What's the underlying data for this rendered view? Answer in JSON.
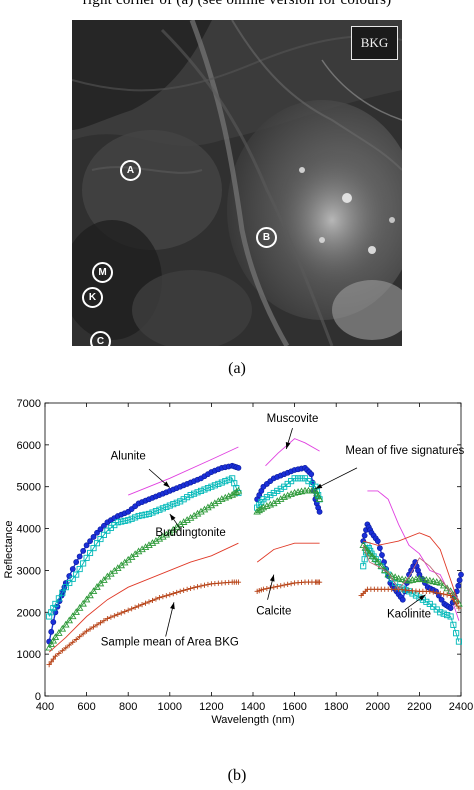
{
  "top_caption": "right corner of (a) (see online version for colours)",
  "image_panel": {
    "bkg_label": "BKG",
    "markers": [
      "A",
      "B",
      "M",
      "K",
      "C"
    ],
    "caption": "(a)"
  },
  "chart_caption": "(b)",
  "chart_data": {
    "type": "line",
    "title": "",
    "xlabel": "Wavelength (nm)",
    "ylabel": "Reflectance",
    "xlim": [
      400,
      2400
    ],
    "ylim": [
      0,
      7000
    ],
    "xticks": [
      400,
      600,
      800,
      1000,
      1200,
      1400,
      1600,
      1800,
      2000,
      2200,
      2400
    ],
    "yticks": [
      0,
      1000,
      2000,
      3000,
      4000,
      5000,
      6000,
      7000
    ],
    "grid": false,
    "series": [
      {
        "name": "Muscovite",
        "color": "#e040e0",
        "marker": "none",
        "segments": [
          [
            [
              800,
              4800
            ],
            [
              1000,
              5200
            ],
            [
              1200,
              5650
            ],
            [
              1330,
              5950
            ]
          ],
          [
            [
              1460,
              5500
            ],
            [
              1520,
              5800
            ],
            [
              1600,
              6150
            ],
            [
              1650,
              6050
            ],
            [
              1720,
              5850
            ]
          ],
          [
            [
              1950,
              4900
            ],
            [
              2000,
              4900
            ],
            [
              2050,
              4700
            ],
            [
              2100,
              4100
            ],
            [
              2150,
              3600
            ],
            [
              2200,
              3400
            ],
            [
              2250,
              3000
            ],
            [
              2300,
              2900
            ],
            [
              2350,
              2400
            ],
            [
              2390,
              1800
            ]
          ]
        ]
      },
      {
        "name": "Alunite",
        "color": "#1a2fd8",
        "marker": "circle",
        "segments": [
          [
            [
              420,
              1300
            ],
            [
              450,
              2000
            ],
            [
              480,
              2400
            ],
            [
              500,
              2700
            ],
            [
              550,
              3200
            ],
            [
              600,
              3600
            ],
            [
              650,
              3900
            ],
            [
              700,
              4150
            ],
            [
              750,
              4300
            ],
            [
              800,
              4400
            ],
            [
              850,
              4600
            ],
            [
              900,
              4700
            ],
            [
              950,
              4800
            ],
            [
              1000,
              4900
            ],
            [
              1050,
              5000
            ],
            [
              1100,
              5100
            ],
            [
              1150,
              5200
            ],
            [
              1200,
              5350
            ],
            [
              1250,
              5450
            ],
            [
              1300,
              5500
            ],
            [
              1330,
              5450
            ]
          ],
          [
            [
              1420,
              4700
            ],
            [
              1450,
              5000
            ],
            [
              1500,
              5200
            ],
            [
              1550,
              5300
            ],
            [
              1600,
              5400
            ],
            [
              1650,
              5450
            ],
            [
              1680,
              5300
            ],
            [
              1700,
              4700
            ],
            [
              1720,
              4400
            ]
          ],
          [
            [
              1930,
              3700
            ],
            [
              1950,
              4100
            ],
            [
              1970,
              3900
            ],
            [
              2000,
              3700
            ],
            [
              2030,
              3200
            ],
            [
              2060,
              2700
            ],
            [
              2090,
              2500
            ],
            [
              2120,
              2300
            ],
            [
              2150,
              2900
            ],
            [
              2180,
              3200
            ],
            [
              2200,
              2900
            ],
            [
              2240,
              2600
            ],
            [
              2280,
              2500
            ],
            [
              2320,
              2200
            ],
            [
              2350,
              2100
            ],
            [
              2380,
              2500
            ],
            [
              2400,
              2900
            ]
          ]
        ]
      },
      {
        "name": "Mean of five signatures",
        "color": "#00b8b8",
        "marker": "square",
        "segments": [
          [
            [
              420,
              1900
            ],
            [
              450,
              2200
            ],
            [
              500,
              2600
            ],
            [
              550,
              2900
            ],
            [
              600,
              3300
            ],
            [
              650,
              3650
            ],
            [
              700,
              3950
            ],
            [
              750,
              4150
            ],
            [
              800,
              4200
            ],
            [
              850,
              4300
            ],
            [
              900,
              4350
            ],
            [
              950,
              4450
            ],
            [
              1000,
              4550
            ],
            [
              1050,
              4650
            ],
            [
              1100,
              4800
            ],
            [
              1150,
              4900
            ],
            [
              1200,
              5000
            ],
            [
              1250,
              5100
            ],
            [
              1300,
              5200
            ],
            [
              1330,
              4850
            ]
          ],
          [
            [
              1420,
              4500
            ],
            [
              1450,
              4700
            ],
            [
              1500,
              4850
            ],
            [
              1550,
              5000
            ],
            [
              1600,
              5200
            ],
            [
              1650,
              5200
            ],
            [
              1700,
              5000
            ],
            [
              1720,
              4700
            ]
          ],
          [
            [
              1930,
              3100
            ],
            [
              1950,
              3600
            ],
            [
              1970,
              3400
            ],
            [
              2000,
              3200
            ],
            [
              2050,
              2900
            ],
            [
              2100,
              2600
            ],
            [
              2150,
              2500
            ],
            [
              2200,
              2350
            ],
            [
              2250,
              2200
            ],
            [
              2300,
              2000
            ],
            [
              2350,
              1900
            ],
            [
              2390,
              1300
            ]
          ]
        ]
      },
      {
        "name": "Buddingtonite",
        "color": "#2f9a3a",
        "marker": "triangle",
        "segments": [
          [
            [
              420,
              1150
            ],
            [
              450,
              1400
            ],
            [
              500,
              1700
            ],
            [
              550,
              2000
            ],
            [
              600,
              2300
            ],
            [
              650,
              2600
            ],
            [
              700,
              2850
            ],
            [
              750,
              3050
            ],
            [
              800,
              3250
            ],
            [
              850,
              3450
            ],
            [
              900,
              3600
            ],
            [
              950,
              3750
            ],
            [
              1000,
              3900
            ],
            [
              1050,
              4100
            ],
            [
              1100,
              4250
            ],
            [
              1150,
              4400
            ],
            [
              1200,
              4550
            ],
            [
              1250,
              4700
            ],
            [
              1300,
              4800
            ],
            [
              1330,
              4900
            ]
          ],
          [
            [
              1420,
              4400
            ],
            [
              1450,
              4500
            ],
            [
              1500,
              4600
            ],
            [
              1550,
              4750
            ],
            [
              1600,
              4850
            ],
            [
              1650,
              4900
            ],
            [
              1700,
              4900
            ],
            [
              1720,
              4700
            ]
          ],
          [
            [
              1930,
              3600
            ],
            [
              1960,
              3400
            ],
            [
              2000,
              3200
            ],
            [
              2050,
              2900
            ],
            [
              2100,
              2800
            ],
            [
              2150,
              2750
            ],
            [
              2200,
              2800
            ],
            [
              2250,
              2750
            ],
            [
              2300,
              2700
            ],
            [
              2350,
              2500
            ],
            [
              2390,
              2200
            ]
          ]
        ]
      },
      {
        "name": "Calcite",
        "color": "#e03a28",
        "marker": "none",
        "segments": [
          [
            [
              420,
              1050
            ],
            [
              500,
              1400
            ],
            [
              600,
              1900
            ],
            [
              700,
              2300
            ],
            [
              800,
              2600
            ],
            [
              900,
              2800
            ],
            [
              1000,
              3000
            ],
            [
              1100,
              3200
            ],
            [
              1200,
              3350
            ],
            [
              1330,
              3650
            ]
          ],
          [
            [
              1420,
              3200
            ],
            [
              1500,
              3500
            ],
            [
              1600,
              3650
            ],
            [
              1720,
              3650
            ]
          ],
          [
            [
              1930,
              3700
            ],
            [
              2000,
              3600
            ],
            [
              2100,
              3700
            ],
            [
              2200,
              3900
            ],
            [
              2250,
              3800
            ],
            [
              2300,
              3500
            ],
            [
              2390,
              2200
            ]
          ]
        ]
      },
      {
        "name": "Sample mean of Area BKG",
        "color": "#b84418",
        "marker": "plus",
        "segments": [
          [
            [
              420,
              750
            ],
            [
              450,
              950
            ],
            [
              500,
              1150
            ],
            [
              550,
              1350
            ],
            [
              600,
              1550
            ],
            [
              650,
              1700
            ],
            [
              700,
              1850
            ],
            [
              750,
              1950
            ],
            [
              800,
              2050
            ],
            [
              850,
              2150
            ],
            [
              900,
              2250
            ],
            [
              950,
              2350
            ],
            [
              1000,
              2420
            ],
            [
              1050,
              2500
            ],
            [
              1100,
              2570
            ],
            [
              1150,
              2630
            ],
            [
              1200,
              2680
            ],
            [
              1250,
              2700
            ],
            [
              1300,
              2720
            ],
            [
              1330,
              2720
            ]
          ],
          [
            [
              1420,
              2500
            ],
            [
              1450,
              2550
            ],
            [
              1500,
              2600
            ],
            [
              1550,
              2650
            ],
            [
              1600,
              2700
            ],
            [
              1650,
              2720
            ],
            [
              1700,
              2720
            ],
            [
              1720,
              2720
            ]
          ],
          [
            [
              1920,
              2400
            ],
            [
              1950,
              2550
            ],
            [
              2000,
              2550
            ],
            [
              2050,
              2550
            ],
            [
              2100,
              2550
            ],
            [
              2150,
              2520
            ],
            [
              2200,
              2500
            ],
            [
              2250,
              2500
            ],
            [
              2300,
              2450
            ],
            [
              2350,
              2400
            ],
            [
              2390,
              2100
            ]
          ]
        ]
      },
      {
        "name": "Kaolinite",
        "color": "#c06a78",
        "marker": "none",
        "segments": [
          [
            [
              1930,
              3600
            ],
            [
              1960,
              3200
            ],
            [
              2000,
              3100
            ],
            [
              2050,
              2950
            ],
            [
              2100,
              2550
            ],
            [
              2150,
              2850
            ],
            [
              2200,
              3300
            ],
            [
              2250,
              3100
            ],
            [
              2300,
              2800
            ],
            [
              2350,
              2500
            ],
            [
              2390,
              2300
            ]
          ]
        ]
      }
    ],
    "annotations": [
      {
        "text": "Muscovite",
        "x": 1590,
        "y": 6550
      },
      {
        "text": "Alunite",
        "x": 800,
        "y": 5650
      },
      {
        "text": "Mean of five signatures",
        "x": 2130,
        "y": 5780
      },
      {
        "text": "Buddingtonite",
        "x": 1100,
        "y": 3820
      },
      {
        "text": "Calcite",
        "x": 1500,
        "y": 1950
      },
      {
        "text": "Kaolinite",
        "x": 2150,
        "y": 1880
      },
      {
        "text": "Sample mean of Area BKG",
        "x": 1000,
        "y": 1210
      }
    ]
  }
}
